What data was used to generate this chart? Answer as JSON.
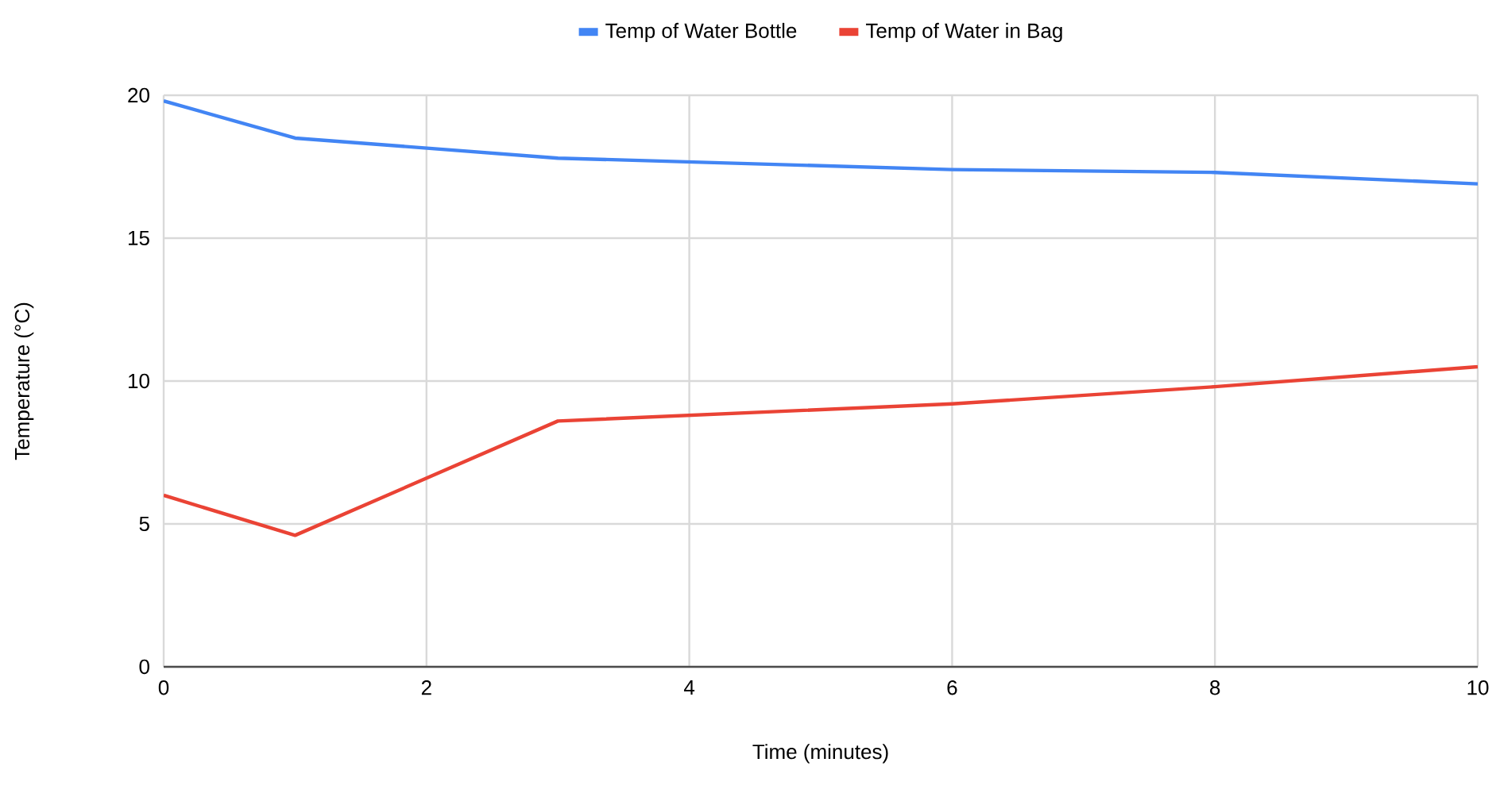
{
  "chart_data": {
    "type": "line",
    "xlabel": "Time (minutes)",
    "ylabel": "Temperature (°C)",
    "x": [
      0,
      1,
      3,
      6,
      8,
      10
    ],
    "series": [
      {
        "name": "Temp of Water Bottle",
        "color": "#4285f4",
        "values": [
          19.8,
          18.5,
          17.8,
          17.4,
          17.3,
          16.9
        ]
      },
      {
        "name": "Temp of Water in Bag",
        "color": "#ea4335",
        "values": [
          6.0,
          4.6,
          8.6,
          9.2,
          9.8,
          10.5
        ]
      }
    ],
    "xlim": [
      0,
      10
    ],
    "ylim": [
      0,
      20
    ],
    "xticks": [
      0,
      2,
      4,
      6,
      8,
      10
    ],
    "yticks": [
      0,
      5,
      10,
      15,
      20
    ],
    "grid": true,
    "legend": "top"
  }
}
